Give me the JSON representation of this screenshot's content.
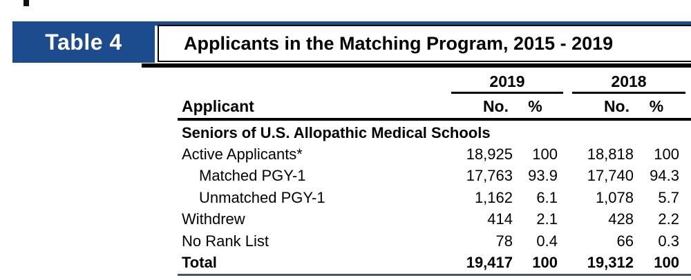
{
  "header": {
    "table_label": "Table 4",
    "title": "Applicants in the Matching Program, 2015 - 2019"
  },
  "table": {
    "applicant_header": "Applicant",
    "year_groups": [
      {
        "year": "2019",
        "no_label": "No.",
        "pct_label": "%"
      },
      {
        "year": "2018",
        "no_label": "No.",
        "pct_label": "%"
      }
    ],
    "rows": [
      {
        "label": "Seniors of U.S. Allopathic Medical Schools",
        "type": "section"
      },
      {
        "label": "Active Applicants*",
        "no_2019": "18,925",
        "pct_2019": "100",
        "no_2018": "18,818",
        "pct_2018": "100"
      },
      {
        "label": "Matched PGY-1",
        "indent": true,
        "no_2019": "17,763",
        "pct_2019": "93.9",
        "no_2018": "17,740",
        "pct_2018": "94.3"
      },
      {
        "label": "Unmatched PGY-1",
        "indent": true,
        "no_2019": "1,162",
        "pct_2019": "6.1",
        "no_2018": "1,078",
        "pct_2018": "5.7"
      },
      {
        "label": "Withdrew",
        "no_2019": "414",
        "pct_2019": "2.1",
        "no_2018": "428",
        "pct_2018": "2.2"
      },
      {
        "label": "No Rank List",
        "no_2019": "78",
        "pct_2019": "0.4",
        "no_2018": "66",
        "pct_2018": "0.3"
      },
      {
        "label": "Total",
        "type": "total",
        "no_2019": "19,417",
        "pct_2019": "100",
        "no_2018": "19,312",
        "pct_2018": "100"
      }
    ]
  },
  "colors": {
    "brand_blue": "#1c4b8e",
    "rule_black": "#000000",
    "bottom_rule_gray": "#4a545e"
  }
}
